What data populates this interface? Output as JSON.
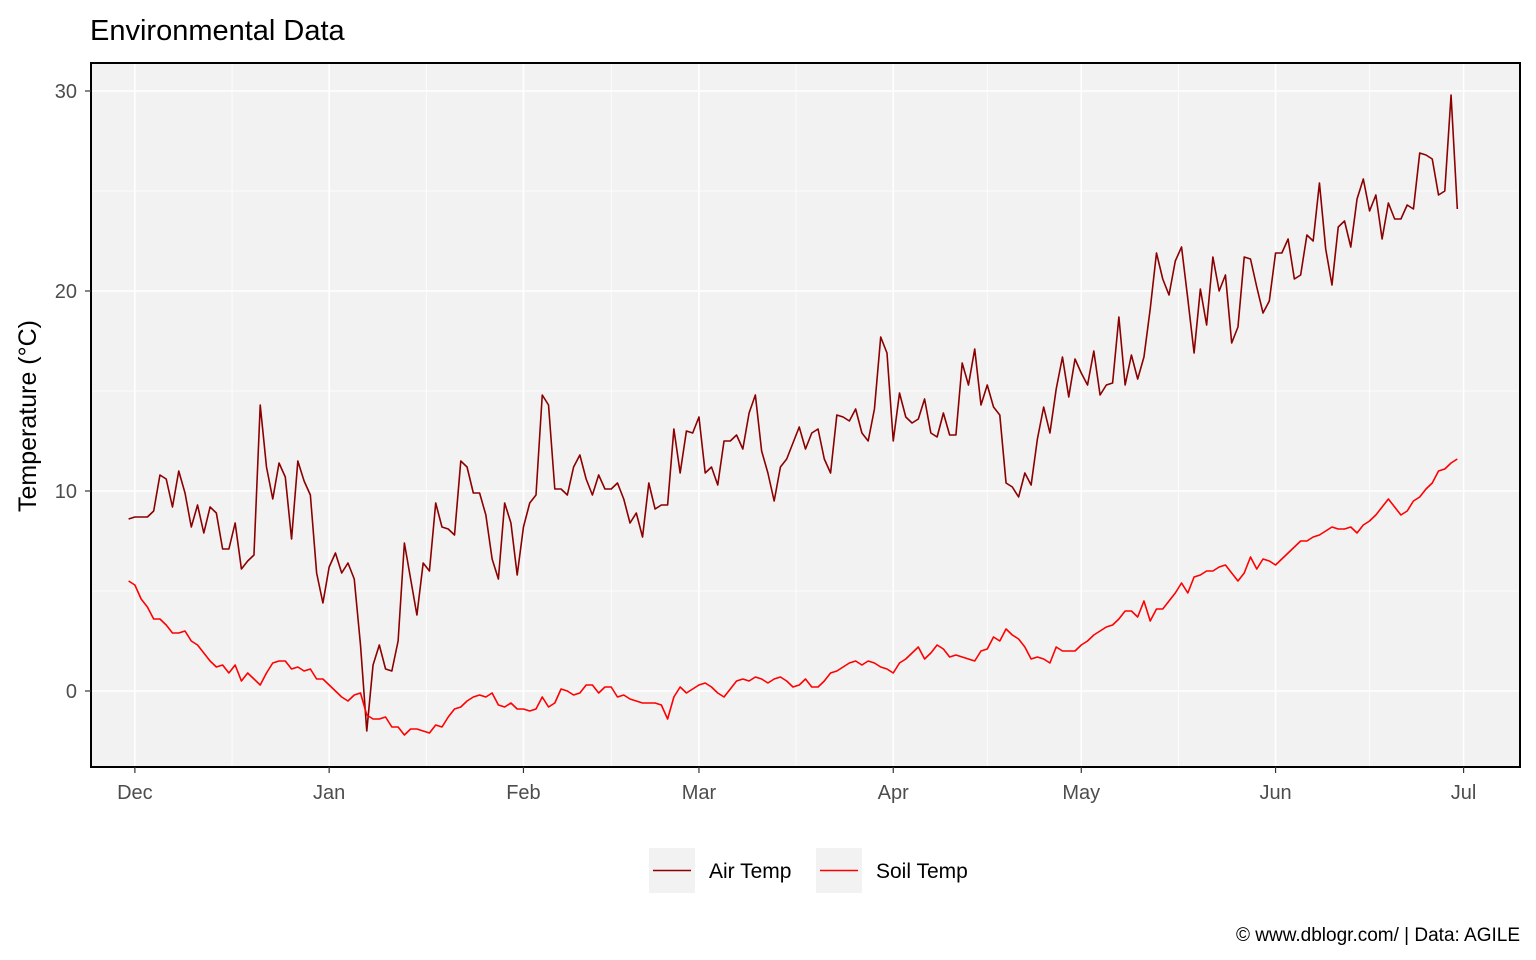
{
  "chart_data": {
    "type": "line",
    "title": "Environmental Data",
    "xlabel": "",
    "ylabel": "Temperature (°C)",
    "caption": "© www.dblogr.com/  |  Data: AGILE",
    "x_ticks": [
      {
        "label": "Dec",
        "date": "2022-12-01"
      },
      {
        "label": "Jan",
        "date": "2023-01-01"
      },
      {
        "label": "Feb",
        "date": "2023-02-01"
      },
      {
        "label": "Mar",
        "date": "2023-03-01"
      },
      {
        "label": "Apr",
        "date": "2023-04-01"
      },
      {
        "label": "May",
        "date": "2023-05-01"
      },
      {
        "label": "Jun",
        "date": "2023-06-01"
      },
      {
        "label": "Jul",
        "date": "2023-07-01"
      }
    ],
    "y_ticks": [
      0,
      10,
      20,
      30
    ],
    "xlim": [
      "2022-11-24",
      "2023-07-10"
    ],
    "ylim": [
      -3.8,
      31.4
    ],
    "grid": true,
    "legend_position": "bottom",
    "x": [
      "2022-11-30",
      "2022-12-01",
      "2022-12-02",
      "2022-12-03",
      "2022-12-04",
      "2022-12-05",
      "2022-12-06",
      "2022-12-07",
      "2022-12-08",
      "2022-12-09",
      "2022-12-10",
      "2022-12-11",
      "2022-12-12",
      "2022-12-13",
      "2022-12-14",
      "2022-12-15",
      "2022-12-16",
      "2022-12-17",
      "2022-12-18",
      "2022-12-19",
      "2022-12-20",
      "2022-12-21",
      "2022-12-22",
      "2022-12-23",
      "2022-12-24",
      "2022-12-25",
      "2022-12-26",
      "2022-12-27",
      "2022-12-28",
      "2022-12-29",
      "2022-12-30",
      "2022-12-31",
      "2023-01-01",
      "2023-01-02",
      "2023-01-03",
      "2023-01-04",
      "2023-01-05",
      "2023-01-06",
      "2023-01-07",
      "2023-01-08",
      "2023-01-09",
      "2023-01-10",
      "2023-01-11",
      "2023-01-12",
      "2023-01-13",
      "2023-01-14",
      "2023-01-15",
      "2023-01-16",
      "2023-01-17",
      "2023-01-18",
      "2023-01-19",
      "2023-01-20",
      "2023-01-21",
      "2023-01-22",
      "2023-01-23",
      "2023-01-24",
      "2023-01-25",
      "2023-01-26",
      "2023-01-27",
      "2023-01-28",
      "2023-01-29",
      "2023-01-30",
      "2023-01-31",
      "2023-02-01",
      "2023-02-02",
      "2023-02-03",
      "2023-02-04",
      "2023-02-05",
      "2023-02-06",
      "2023-02-07",
      "2023-02-08",
      "2023-02-09",
      "2023-02-10",
      "2023-02-11",
      "2023-02-12",
      "2023-02-13",
      "2023-02-14",
      "2023-02-15",
      "2023-02-16",
      "2023-02-17",
      "2023-02-18",
      "2023-02-19",
      "2023-02-20",
      "2023-02-21",
      "2023-02-22",
      "2023-02-23",
      "2023-02-24",
      "2023-02-25",
      "2023-02-26",
      "2023-02-27",
      "2023-02-28",
      "2023-03-01",
      "2023-03-02",
      "2023-03-03",
      "2023-03-04",
      "2023-03-05",
      "2023-03-06",
      "2023-03-07",
      "2023-03-08",
      "2023-03-09",
      "2023-03-10",
      "2023-03-11",
      "2023-03-12",
      "2023-03-13",
      "2023-03-14",
      "2023-03-15",
      "2023-03-16",
      "2023-03-17",
      "2023-03-18",
      "2023-03-19",
      "2023-03-20",
      "2023-03-21",
      "2023-03-22",
      "2023-03-23",
      "2023-03-24",
      "2023-03-25",
      "2023-03-26",
      "2023-03-27",
      "2023-03-28",
      "2023-03-29",
      "2023-03-30",
      "2023-03-31",
      "2023-04-01",
      "2023-04-02",
      "2023-04-03",
      "2023-04-04",
      "2023-04-05",
      "2023-04-06",
      "2023-04-07",
      "2023-04-08",
      "2023-04-09",
      "2023-04-10",
      "2023-04-11",
      "2023-04-12",
      "2023-04-13",
      "2023-04-14",
      "2023-04-15",
      "2023-04-16",
      "2023-04-17",
      "2023-04-18",
      "2023-04-19",
      "2023-04-20",
      "2023-04-21",
      "2023-04-22",
      "2023-04-23",
      "2023-04-24",
      "2023-04-25",
      "2023-04-26",
      "2023-04-27",
      "2023-04-28",
      "2023-04-29",
      "2023-04-30",
      "2023-05-01",
      "2023-05-02",
      "2023-05-03",
      "2023-05-04",
      "2023-05-05",
      "2023-05-06",
      "2023-05-07",
      "2023-05-08",
      "2023-05-09",
      "2023-05-10",
      "2023-05-11",
      "2023-05-12",
      "2023-05-13",
      "2023-05-14",
      "2023-05-15",
      "2023-05-16",
      "2023-05-17",
      "2023-05-18",
      "2023-05-19",
      "2023-05-20",
      "2023-05-21",
      "2023-05-22",
      "2023-05-23",
      "2023-05-24",
      "2023-05-25",
      "2023-05-26",
      "2023-05-27",
      "2023-05-28",
      "2023-05-29",
      "2023-05-30",
      "2023-05-31",
      "2023-06-01",
      "2023-06-02",
      "2023-06-03",
      "2023-06-04",
      "2023-06-05",
      "2023-06-06",
      "2023-06-07",
      "2023-06-08",
      "2023-06-09",
      "2023-06-10",
      "2023-06-11",
      "2023-06-12",
      "2023-06-13",
      "2023-06-14",
      "2023-06-15",
      "2023-06-16",
      "2023-06-17",
      "2023-06-18",
      "2023-06-19",
      "2023-06-20",
      "2023-06-21",
      "2023-06-22",
      "2023-06-23",
      "2023-06-24",
      "2023-06-25",
      "2023-06-26",
      "2023-06-27",
      "2023-06-28",
      "2023-06-29",
      "2023-06-30"
    ],
    "series": [
      {
        "name": "Air Temp",
        "color": "#8b0000",
        "values": [
          8.6,
          8.7,
          8.7,
          8.7,
          9.0,
          10.8,
          10.6,
          9.2,
          11.0,
          9.9,
          8.2,
          9.3,
          7.9,
          9.2,
          8.9,
          7.1,
          7.1,
          8.4,
          6.1,
          6.5,
          6.8,
          14.3,
          11.2,
          9.6,
          11.4,
          10.7,
          7.6,
          11.5,
          10.5,
          9.8,
          5.9,
          4.4,
          6.2,
          6.9,
          5.9,
          6.4,
          5.6,
          2.3,
          -2.0,
          1.3,
          2.3,
          1.1,
          1.0,
          2.5,
          7.4,
          5.6,
          3.8,
          6.4,
          6.0,
          9.4,
          8.2,
          8.1,
          7.8,
          11.5,
          11.2,
          9.9,
          9.9,
          8.8,
          6.6,
          5.6,
          9.4,
          8.4,
          5.8,
          8.2,
          9.4,
          9.8,
          14.8,
          14.3,
          10.1,
          10.1,
          9.8,
          11.2,
          11.8,
          10.6,
          9.8,
          10.8,
          10.1,
          10.1,
          10.4,
          9.6,
          8.4,
          8.9,
          7.7,
          10.4,
          9.1,
          9.3,
          9.3,
          13.1,
          10.9,
          13.0,
          12.9,
          13.7,
          10.9,
          11.2,
          10.3,
          12.5,
          12.5,
          12.8,
          12.1,
          13.9,
          14.8,
          12.0,
          10.9,
          9.5,
          11.2,
          11.6,
          12.4,
          13.2,
          12.1,
          12.9,
          13.1,
          11.6,
          10.9,
          13.8,
          13.7,
          13.5,
          14.1,
          12.9,
          12.5,
          14.1,
          17.7,
          16.9,
          12.5,
          14.9,
          13.7,
          13.4,
          13.6,
          14.6,
          12.9,
          12.7,
          13.9,
          12.8,
          12.8,
          16.4,
          15.3,
          17.1,
          14.3,
          15.3,
          14.2,
          13.8,
          10.4,
          10.2,
          9.7,
          10.9,
          10.3,
          12.6,
          14.2,
          12.9,
          15.1,
          16.7,
          14.7,
          16.6,
          15.9,
          15.3,
          17.0,
          14.8,
          15.3,
          15.4,
          18.7,
          15.3,
          16.8,
          15.6,
          16.7,
          19.1,
          21.9,
          20.6,
          19.8,
          21.5,
          22.2,
          19.6,
          16.9,
          20.1,
          18.3,
          21.7,
          20.0,
          20.8,
          17.4,
          18.2,
          21.7,
          21.6,
          20.2,
          18.9,
          19.5,
          21.9,
          21.9,
          22.6,
          20.6,
          20.8,
          22.8,
          22.5,
          25.4,
          22.1,
          20.3,
          23.2,
          23.5,
          22.2,
          24.6,
          25.6,
          24.0,
          24.8,
          22.6,
          24.4,
          23.6,
          23.6,
          24.3,
          24.1,
          26.9,
          26.8,
          26.6,
          24.8,
          25.0,
          29.8,
          24.1
        ]
      },
      {
        "name": "Soil Temp",
        "color": "#ff0000",
        "values": [
          5.5,
          5.3,
          4.6,
          4.2,
          3.6,
          3.6,
          3.3,
          2.9,
          2.9,
          3.0,
          2.5,
          2.3,
          1.9,
          1.5,
          1.2,
          1.3,
          0.9,
          1.3,
          0.5,
          0.9,
          0.6,
          0.3,
          0.9,
          1.4,
          1.5,
          1.5,
          1.1,
          1.2,
          1.0,
          1.1,
          0.6,
          0.6,
          0.3,
          0.0,
          -0.3,
          -0.5,
          -0.2,
          -0.1,
          -1.2,
          -1.4,
          -1.4,
          -1.3,
          -1.8,
          -1.8,
          -2.2,
          -1.9,
          -1.9,
          -2.0,
          -2.1,
          -1.7,
          -1.8,
          -1.3,
          -0.9,
          -0.8,
          -0.5,
          -0.3,
          -0.2,
          -0.3,
          -0.1,
          -0.7,
          -0.8,
          -0.6,
          -0.9,
          -0.9,
          -1.0,
          -0.9,
          -0.3,
          -0.8,
          -0.6,
          0.1,
          0.0,
          -0.2,
          -0.1,
          0.3,
          0.3,
          -0.1,
          0.2,
          0.2,
          -0.3,
          -0.2,
          -0.4,
          -0.5,
          -0.6,
          -0.6,
          -0.6,
          -0.7,
          -1.4,
          -0.3,
          0.2,
          -0.1,
          0.1,
          0.3,
          0.4,
          0.2,
          -0.1,
          -0.3,
          0.1,
          0.5,
          0.6,
          0.5,
          0.7,
          0.6,
          0.4,
          0.6,
          0.7,
          0.5,
          0.2,
          0.3,
          0.6,
          0.2,
          0.2,
          0.5,
          0.9,
          1.0,
          1.2,
          1.4,
          1.5,
          1.3,
          1.5,
          1.4,
          1.2,
          1.1,
          0.9,
          1.4,
          1.6,
          1.9,
          2.2,
          1.6,
          1.9,
          2.3,
          2.1,
          1.7,
          1.8,
          1.7,
          1.6,
          1.5,
          2.0,
          2.1,
          2.7,
          2.5,
          3.1,
          2.8,
          2.6,
          2.2,
          1.6,
          1.7,
          1.6,
          1.4,
          2.2,
          2.0,
          2.0,
          2.0,
          2.3,
          2.5,
          2.8,
          3.0,
          3.2,
          3.3,
          3.6,
          4.0,
          4.0,
          3.7,
          4.5,
          3.5,
          4.1,
          4.1,
          4.5,
          4.9,
          5.4,
          4.9,
          5.7,
          5.8,
          6.0,
          6.0,
          6.2,
          6.3,
          5.9,
          5.5,
          5.9,
          6.7,
          6.1,
          6.6,
          6.5,
          6.3,
          6.6,
          6.9,
          7.2,
          7.5,
          7.5,
          7.7,
          7.8,
          8.0,
          8.2,
          8.1,
          8.1,
          8.2,
          7.9,
          8.3,
          8.5,
          8.8,
          9.2,
          9.6,
          9.2,
          8.8,
          9.0,
          9.5,
          9.7,
          10.1,
          10.4,
          11.0,
          11.1,
          11.4,
          11.6
        ]
      }
    ]
  }
}
